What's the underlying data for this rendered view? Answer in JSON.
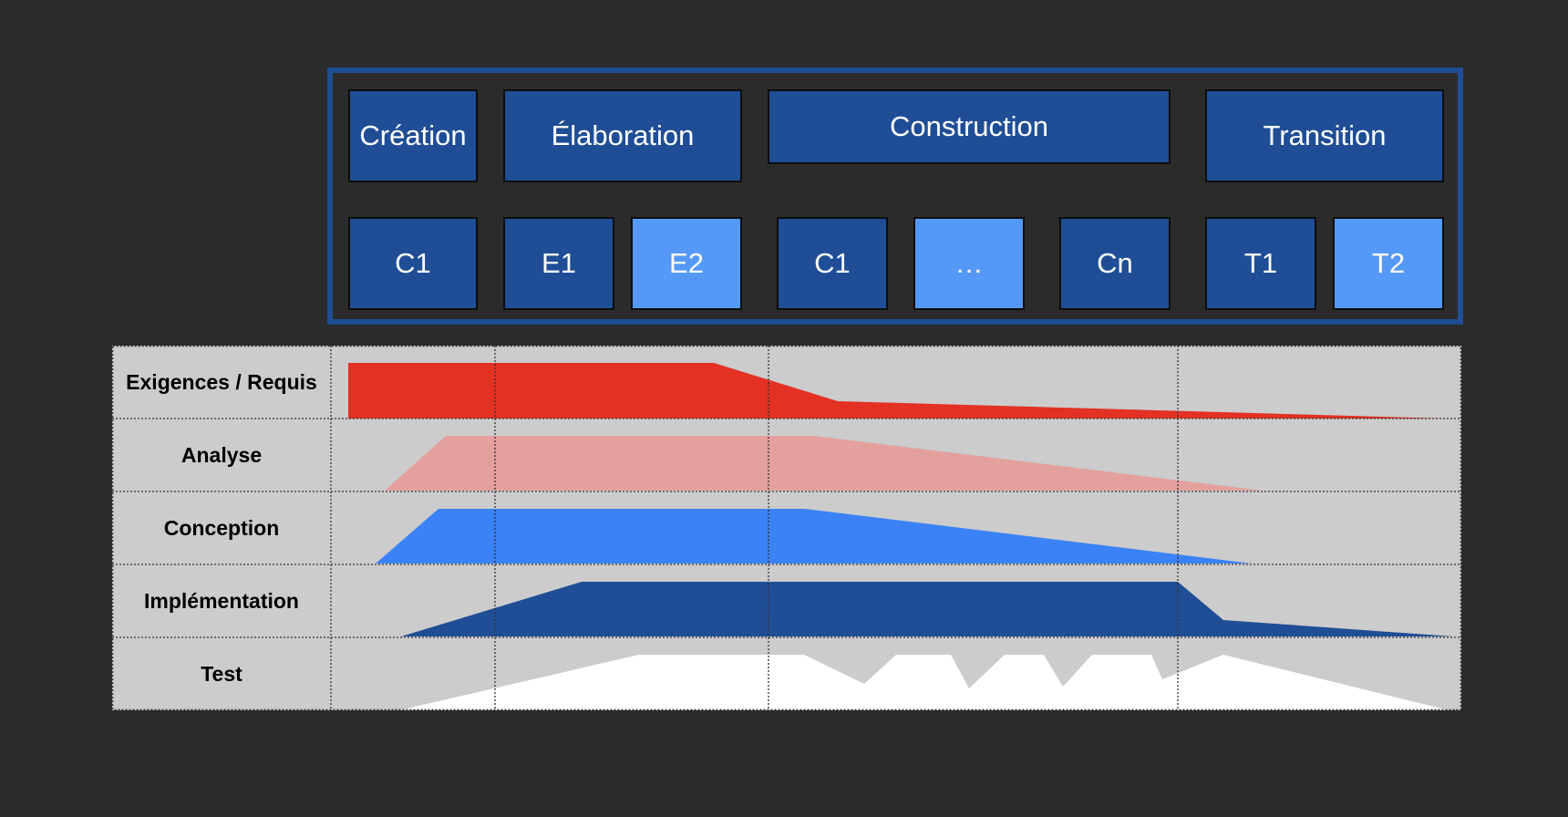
{
  "phases": [
    {
      "label": "Création",
      "shade": "dark"
    },
    {
      "label": "Élaboration",
      "shade": "dark"
    },
    {
      "label": "Construction",
      "shade": "dark"
    },
    {
      "label": "Transition",
      "shade": "dark"
    }
  ],
  "iterations": [
    {
      "label": "C1",
      "shade": "dark"
    },
    {
      "label": "E1",
      "shade": "dark"
    },
    {
      "label": "E2",
      "shade": "light"
    },
    {
      "label": "C1",
      "shade": "dark"
    },
    {
      "label": "…",
      "shade": "light"
    },
    {
      "label": "Cn",
      "shade": "dark"
    },
    {
      "label": "T1",
      "shade": "dark"
    },
    {
      "label": "T2",
      "shade": "light"
    }
  ],
  "disciplines": [
    {
      "label": "Exigences / Requis",
      "color": "#e33124"
    },
    {
      "label": "Analyse",
      "color": "#e3a09d"
    },
    {
      "label": "Conception",
      "color": "#3b82f6"
    },
    {
      "label": "Implémentation",
      "color": "#1f4e96"
    },
    {
      "label": "Test",
      "color": "#ffffff"
    }
  ],
  "colors": {
    "background": "#2b2b2b",
    "frame": "#1f4e96",
    "box_dark": "#1f4e96",
    "box_light": "#5599f7",
    "grid": "#cccccc"
  }
}
